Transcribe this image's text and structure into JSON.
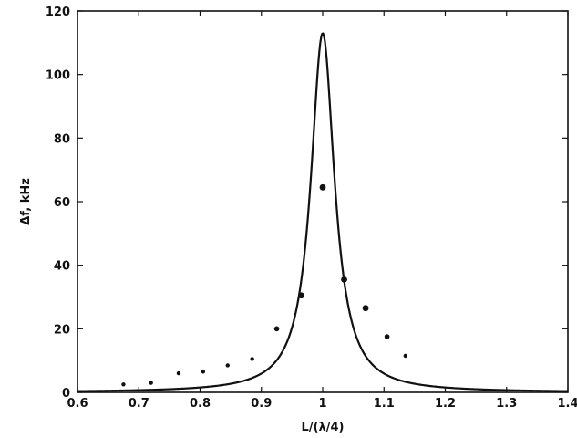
{
  "chart_data": {
    "type": "scatter",
    "title": "",
    "xlabel": "L/(λ/4)",
    "ylabel": "Δf, kHz",
    "xlim": [
      0.6,
      1.4
    ],
    "ylim": [
      0,
      120
    ],
    "x_ticks": [
      "0.6",
      "0.7",
      "0.8",
      "0.9",
      "1",
      "1.1",
      "1.2",
      "1.3",
      "1.4"
    ],
    "y_ticks": [
      "0",
      "20",
      "40",
      "60",
      "80",
      "100",
      "120"
    ],
    "grid": false,
    "series": [
      {
        "kind": "line",
        "color": "#111111",
        "peak_x": 1.0,
        "peak_y": 113,
        "half_width": 0.0235,
        "x": [
          0.6,
          0.65,
          0.7,
          0.75,
          0.8,
          0.85,
          0.9,
          0.93,
          0.95,
          0.97,
          0.98,
          0.99,
          1.0,
          1.01,
          1.02,
          1.03,
          1.05,
          1.07,
          1.1,
          1.15,
          1.2,
          1.25,
          1.3,
          1.35,
          1.4
        ],
        "y": [
          0.4,
          0.6,
          1.0,
          1.5,
          2.1,
          3.8,
          7.4,
          11.7,
          18.5,
          41.7,
          65.0,
          97.1,
          113,
          97.1,
          65.0,
          42.5,
          20.5,
          11.7,
          6.6,
          2.8,
          1.6,
          1.0,
          0.8,
          0.7,
          0.6
        ]
      },
      {
        "kind": "scatter",
        "color": "#111111",
        "x": [
          0.675,
          0.72,
          0.765,
          0.805,
          0.845,
          0.885,
          0.925,
          0.965,
          1.0,
          1.035,
          1.07,
          1.105,
          1.135
        ],
        "y": [
          2.5,
          3.0,
          6.0,
          6.5,
          8.5,
          10.5,
          20.0,
          30.5,
          64.5,
          35.5,
          26.5,
          17.5,
          11.5
        ]
      }
    ]
  }
}
